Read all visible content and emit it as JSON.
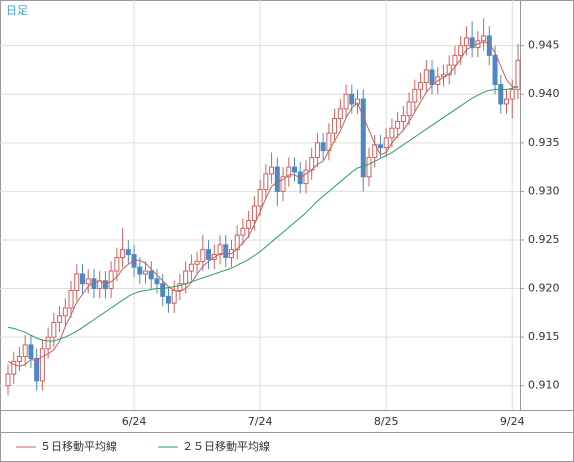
{
  "chart_data": {
    "type": "candlestick",
    "label": "日足",
    "categories": [
      null,
      null,
      null,
      null,
      null,
      null,
      null,
      null,
      null,
      null,
      null,
      null,
      null,
      null,
      null,
      null,
      null,
      null,
      null,
      null,
      null,
      null,
      "6/24",
      null,
      null,
      null,
      null,
      null,
      null,
      null,
      null,
      null,
      null,
      null,
      null,
      null,
      null,
      null,
      null,
      null,
      null,
      null,
      null,
      null,
      "7/24",
      null,
      null,
      null,
      null,
      null,
      null,
      null,
      null,
      null,
      null,
      null,
      null,
      null,
      null,
      null,
      null,
      null,
      null,
      null,
      null,
      null,
      "8/25",
      null,
      null,
      null,
      null,
      null,
      null,
      null,
      null,
      null,
      null,
      null,
      null,
      null,
      null,
      null,
      null,
      null,
      null,
      null,
      null,
      null,
      "9/24",
      null
    ],
    "open": [
      0.91,
      0.9112,
      0.9125,
      0.913,
      0.9142,
      0.9128,
      0.9105,
      0.9138,
      0.915,
      0.9165,
      0.9172,
      0.918,
      0.9198,
      0.9215,
      0.9205,
      0.921,
      0.92,
      0.9208,
      0.92,
      0.9218,
      0.9232,
      0.924,
      0.9235,
      0.9222,
      0.9215,
      0.9218,
      0.921,
      0.9205,
      0.9192,
      0.9185,
      0.9198,
      0.9205,
      0.9218,
      0.9225,
      0.9228,
      0.924,
      0.923,
      0.9235,
      0.9245,
      0.9232,
      0.924,
      0.9255,
      0.9262,
      0.927,
      0.9285,
      0.9302,
      0.9318,
      0.9325,
      0.93,
      0.9315,
      0.9325,
      0.932,
      0.9308,
      0.9322,
      0.9335,
      0.935,
      0.9342,
      0.936,
      0.9375,
      0.9385,
      0.94,
      0.939,
      0.9395,
      0.9315,
      0.9335,
      0.9348,
      0.9345,
      0.9355,
      0.9365,
      0.9372,
      0.9378,
      0.9392,
      0.9405,
      0.9412,
      0.9425,
      0.941,
      0.9418,
      0.942,
      0.943,
      0.944,
      0.945,
      0.9458,
      0.9448,
      0.9455,
      0.946,
      0.944,
      0.941,
      0.939,
      0.9395,
      0.9405
    ],
    "high": [
      0.9122,
      0.9135,
      0.914,
      0.9152,
      0.9152,
      0.9138,
      0.9148,
      0.916,
      0.9175,
      0.9182,
      0.919,
      0.9208,
      0.9225,
      0.9225,
      0.922,
      0.922,
      0.9218,
      0.9218,
      0.9228,
      0.9242,
      0.9262,
      0.925,
      0.9245,
      0.9232,
      0.9228,
      0.9228,
      0.922,
      0.9215,
      0.9202,
      0.9208,
      0.9215,
      0.9228,
      0.9235,
      0.9238,
      0.9255,
      0.925,
      0.9245,
      0.9255,
      0.9255,
      0.925,
      0.9265,
      0.9272,
      0.928,
      0.9295,
      0.9312,
      0.9328,
      0.934,
      0.9335,
      0.9325,
      0.9335,
      0.9335,
      0.933,
      0.9332,
      0.9345,
      0.936,
      0.936,
      0.937,
      0.9385,
      0.9395,
      0.941,
      0.941,
      0.9405,
      0.9405,
      0.9345,
      0.9358,
      0.9358,
      0.9365,
      0.9375,
      0.9382,
      0.9388,
      0.9402,
      0.9415,
      0.9422,
      0.9435,
      0.9435,
      0.9428,
      0.943,
      0.944,
      0.945,
      0.946,
      0.947,
      0.9475,
      0.9465,
      0.9478,
      0.947,
      0.945,
      0.942,
      0.9405,
      0.9415,
      0.9452
    ],
    "low": [
      0.909,
      0.9102,
      0.9115,
      0.912,
      0.9118,
      0.9095,
      0.9095,
      0.9128,
      0.914,
      0.9155,
      0.9162,
      0.917,
      0.9188,
      0.9195,
      0.9195,
      0.919,
      0.919,
      0.919,
      0.919,
      0.9208,
      0.9222,
      0.9225,
      0.9212,
      0.9205,
      0.9205,
      0.92,
      0.9195,
      0.9182,
      0.9175,
      0.9175,
      0.9188,
      0.9195,
      0.9208,
      0.9215,
      0.9218,
      0.922,
      0.922,
      0.9225,
      0.9222,
      0.9222,
      0.923,
      0.9245,
      0.9252,
      0.926,
      0.9275,
      0.9292,
      0.9308,
      0.9285,
      0.929,
      0.9305,
      0.931,
      0.9298,
      0.9298,
      0.9312,
      0.9325,
      0.9332,
      0.9332,
      0.935,
      0.9365,
      0.9375,
      0.938,
      0.938,
      0.93,
      0.9305,
      0.9325,
      0.9335,
      0.9335,
      0.9345,
      0.9355,
      0.9362,
      0.9368,
      0.9382,
      0.9395,
      0.9402,
      0.94,
      0.94,
      0.9408,
      0.941,
      0.942,
      0.943,
      0.944,
      0.9438,
      0.9438,
      0.9445,
      0.943,
      0.94,
      0.938,
      0.938,
      0.9375,
      0.9395
    ],
    "close": [
      0.9112,
      0.9125,
      0.913,
      0.9142,
      0.9128,
      0.9105,
      0.9138,
      0.915,
      0.9165,
      0.9172,
      0.918,
      0.9198,
      0.9215,
      0.9205,
      0.921,
      0.92,
      0.9208,
      0.92,
      0.9218,
      0.9232,
      0.924,
      0.9235,
      0.9222,
      0.9215,
      0.9218,
      0.921,
      0.9205,
      0.9192,
      0.9185,
      0.9198,
      0.9205,
      0.9218,
      0.9225,
      0.9228,
      0.924,
      0.923,
      0.9235,
      0.9245,
      0.9232,
      0.924,
      0.9255,
      0.9262,
      0.927,
      0.9285,
      0.9302,
      0.9318,
      0.9325,
      0.93,
      0.9315,
      0.9325,
      0.932,
      0.9308,
      0.9322,
      0.9335,
      0.935,
      0.9342,
      0.936,
      0.9375,
      0.9385,
      0.94,
      0.939,
      0.9395,
      0.9315,
      0.9335,
      0.9348,
      0.9345,
      0.9355,
      0.9365,
      0.9372,
      0.9378,
      0.9392,
      0.9405,
      0.9412,
      0.9425,
      0.941,
      0.9418,
      0.942,
      0.943,
      0.944,
      0.945,
      0.9458,
      0.9448,
      0.9455,
      0.946,
      0.944,
      0.941,
      0.939,
      0.9395,
      0.9405,
      0.9435
    ],
    "up_color": "#d0605c",
    "down_color": "#4d88c4",
    "series": [
      {
        "name": "５日移動平均線",
        "color": "#c4605c",
        "values": [
          0.9125,
          0.9122,
          0.912,
          0.9122,
          0.9127,
          0.9126,
          0.913,
          0.9133,
          0.9137,
          0.9146,
          0.9161,
          0.9173,
          0.9186,
          0.9194,
          0.9202,
          0.9206,
          0.9208,
          0.9205,
          0.9207,
          0.9212,
          0.922,
          0.9225,
          0.9229,
          0.9229,
          0.9226,
          0.922,
          0.9214,
          0.9208,
          0.9202,
          0.9198,
          0.9197,
          0.92,
          0.9206,
          0.9215,
          0.9223,
          0.9228,
          0.9232,
          0.9236,
          0.9236,
          0.9236,
          0.9241,
          0.9247,
          0.9254,
          0.9266,
          0.9279,
          0.9293,
          0.9305,
          0.931,
          0.9312,
          0.9317,
          0.9317,
          0.9314,
          0.9318,
          0.9322,
          0.9328,
          0.9331,
          0.9342,
          0.9352,
          0.9362,
          0.9376,
          0.9386,
          0.9391,
          0.9377,
          0.9363,
          0.9349,
          0.9338,
          0.934,
          0.935,
          0.9357,
          0.9363,
          0.9372,
          0.9382,
          0.9392,
          0.9402,
          0.9409,
          0.9414,
          0.9417,
          0.9421,
          0.9428,
          0.9436,
          0.9446,
          0.9449,
          0.9452,
          0.9454,
          0.9452,
          0.9443,
          0.9429,
          0.9415,
          0.9408,
          0.9407
        ]
      },
      {
        "name": "２５日移動平均線",
        "color": "#2b9c68",
        "values": [
          0.916,
          0.9159,
          0.9157,
          0.9155,
          0.9152,
          0.9149,
          0.9147,
          0.9146,
          0.9146,
          0.9148,
          0.915,
          0.9153,
          0.9156,
          0.916,
          0.9164,
          0.9168,
          0.9172,
          0.9176,
          0.918,
          0.9184,
          0.9188,
          0.9192,
          0.9195,
          0.9197,
          0.9198,
          0.9199,
          0.92,
          0.92,
          0.9201,
          0.9202,
          0.9203,
          0.9205,
          0.9207,
          0.9209,
          0.9211,
          0.9213,
          0.9215,
          0.9217,
          0.9219,
          0.9221,
          0.9224,
          0.9227,
          0.923,
          0.9234,
          0.9238,
          0.9243,
          0.9248,
          0.9253,
          0.9258,
          0.9263,
          0.9268,
          0.9273,
          0.9278,
          0.9284,
          0.929,
          0.9295,
          0.93,
          0.9305,
          0.931,
          0.9315,
          0.932,
          0.9324,
          0.9326,
          0.9328,
          0.9331,
          0.9334,
          0.9337,
          0.934,
          0.9344,
          0.9348,
          0.9352,
          0.9356,
          0.936,
          0.9364,
          0.9368,
          0.9372,
          0.9376,
          0.938,
          0.9384,
          0.9388,
          0.9392,
          0.9396,
          0.9399,
          0.9402,
          0.9404,
          0.9405,
          0.9405,
          0.9405,
          0.9406,
          0.9408
        ]
      }
    ],
    "ylim": [
      0.9075,
      0.9497
    ],
    "yticks": [
      {
        "value": 0.91,
        "label": "0.910"
      },
      0.915,
      {
        "value": 0.92,
        "label": "0.920"
      },
      0.925,
      {
        "value": 0.93,
        "label": "0.930"
      },
      0.935,
      {
        "value": 0.94,
        "label": "0.940"
      },
      0.945
    ],
    "grid": true
  }
}
